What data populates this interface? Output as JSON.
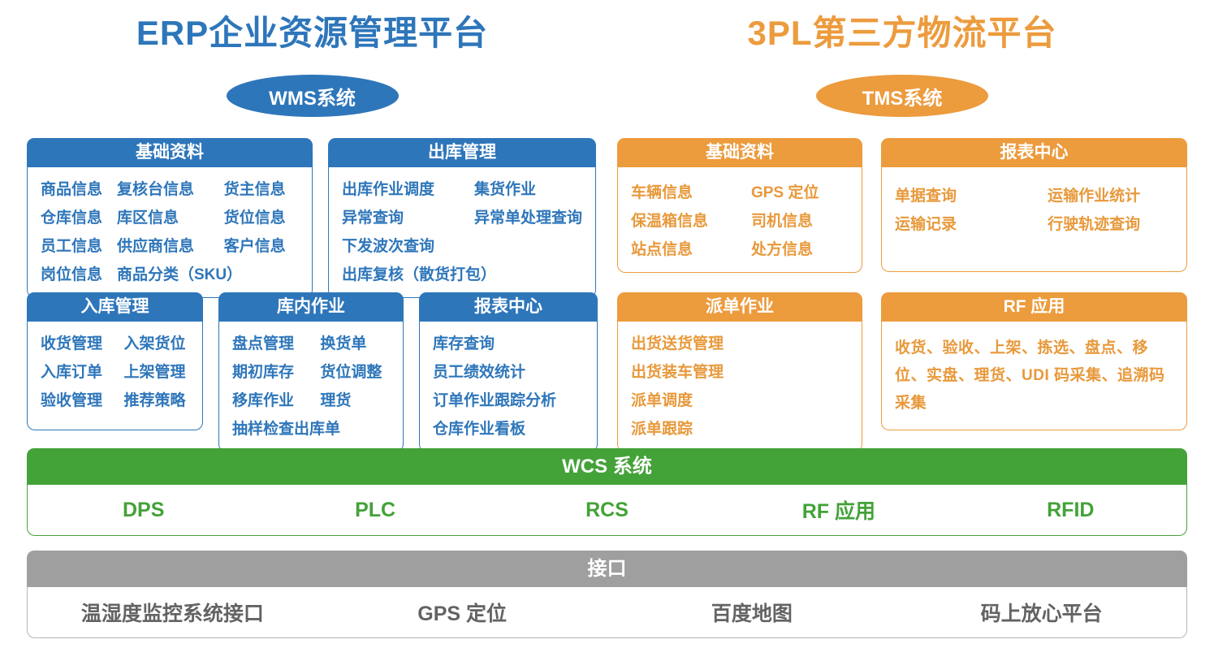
{
  "header": {
    "erp_title": "ERP企业资源管理平台",
    "tpl_title": "3PL第三方物流平台",
    "wms_badge": "WMS系统",
    "tms_badge": "TMS系统"
  },
  "wms": {
    "basic": {
      "title": "基础资料",
      "items": [
        "商品信息",
        "复核台信息",
        "货主信息",
        "仓库信息",
        "库区信息",
        "货位信息",
        "员工信息",
        "供应商信息",
        "客户信息",
        "岗位信息",
        "商品分类（SKU）"
      ]
    },
    "outbound": {
      "title": "出库管理",
      "items": [
        "出库作业调度",
        "集货作业",
        "异常查询",
        "异常单处理查询",
        "下发波次查询",
        "出库复核（散货打包）"
      ]
    },
    "inbound": {
      "title": "入库管理",
      "items": [
        "收货管理",
        "入架货位",
        "入库订单",
        "上架管理",
        "验收管理",
        "推荐策略"
      ]
    },
    "warehouse_ops": {
      "title": "库内作业",
      "items": [
        "盘点管理",
        "换货单",
        "期初库存",
        "货位调整",
        "移库作业",
        "理货",
        "抽样检查出库单"
      ]
    },
    "report": {
      "title": "报表中心",
      "items": [
        "库存查询",
        "员工绩效统计",
        "订单作业跟踪分析",
        "仓库作业看板"
      ]
    }
  },
  "tms": {
    "basic": {
      "title": "基础资料",
      "items": [
        "车辆信息",
        "GPS 定位",
        "保温箱信息",
        "司机信息",
        "站点信息",
        "处方信息"
      ]
    },
    "report": {
      "title": "报表中心",
      "items": [
        "单据查询",
        "运输作业统计",
        "运输记录",
        "行驶轨迹查询"
      ]
    },
    "dispatch": {
      "title": "派单作业",
      "items": [
        "出货送货管理",
        "出货装车管理",
        "派单调度",
        "派单跟踪"
      ]
    },
    "rf": {
      "title": "RF 应用",
      "text": "收货、验收、上架、拣选、盘点、移位、实盘、理货、UDI 码采集、追溯码采集"
    }
  },
  "wcs": {
    "title": "WCS 系统",
    "items": [
      "DPS",
      "PLC",
      "RCS",
      "RF 应用",
      "RFID"
    ]
  },
  "interface": {
    "title": "接口",
    "items": [
      "温湿度监控系统接口",
      "GPS 定位",
      "百度地图",
      "码上放心平台"
    ]
  },
  "colors": {
    "blue": "#2E76BA",
    "orange": "#EC9B3D",
    "green": "#43A238",
    "gray": "#9F9F9F"
  }
}
